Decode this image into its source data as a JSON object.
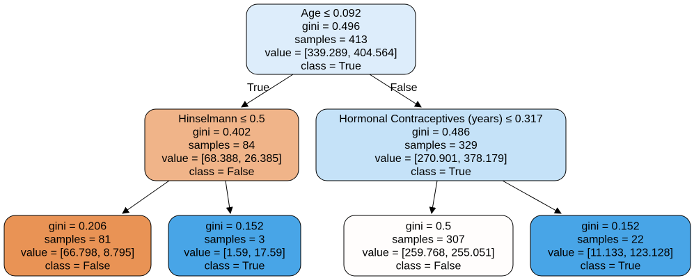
{
  "tree": {
    "nodes": [
      {
        "id": "root",
        "fill": "#ddedfb",
        "lines": [
          "Age ≤ 0.092",
          "gini = 0.496",
          "samples = 413",
          "value = [339.289, 404.564]",
          "class = True"
        ]
      },
      {
        "id": "left",
        "fill": "#f0b489",
        "lines": [
          "Hinselmann ≤ 0.5",
          "gini = 0.402",
          "samples = 84",
          "value = [68.388, 26.385]",
          "class = False"
        ]
      },
      {
        "id": "right",
        "fill": "#c5e2f8",
        "lines": [
          "Hormonal Contraceptives (years) ≤ 0.317",
          "gini = 0.486",
          "samples = 329",
          "value = [270.901, 378.179]",
          "class = True"
        ]
      },
      {
        "id": "left-left",
        "fill": "#e99355",
        "lines": [
          "gini = 0.206",
          "samples = 81",
          "value = [66.798, 8.795]",
          "class = False"
        ]
      },
      {
        "id": "left-right",
        "fill": "#48a5e7",
        "lines": [
          "gini = 0.152",
          "samples = 3",
          "value = [1.59, 17.59]",
          "class = True"
        ]
      },
      {
        "id": "right-left",
        "fill": "#fffdfc",
        "lines": [
          "gini = 0.5",
          "samples = 307",
          "value = [259.768, 255.051]",
          "class = False"
        ]
      },
      {
        "id": "right-right",
        "fill": "#48a5e7",
        "lines": [
          "gini = 0.152",
          "samples = 22",
          "value = [11.133, 123.128]",
          "class = True"
        ]
      }
    ],
    "edges": [
      {
        "from": "root",
        "to": "left",
        "label": "True"
      },
      {
        "from": "root",
        "to": "right",
        "label": "False"
      },
      {
        "from": "left",
        "to": "left-left",
        "label": ""
      },
      {
        "from": "left",
        "to": "left-right",
        "label": ""
      },
      {
        "from": "right",
        "to": "right-left",
        "label": ""
      },
      {
        "from": "right",
        "to": "right-right",
        "label": ""
      }
    ]
  }
}
